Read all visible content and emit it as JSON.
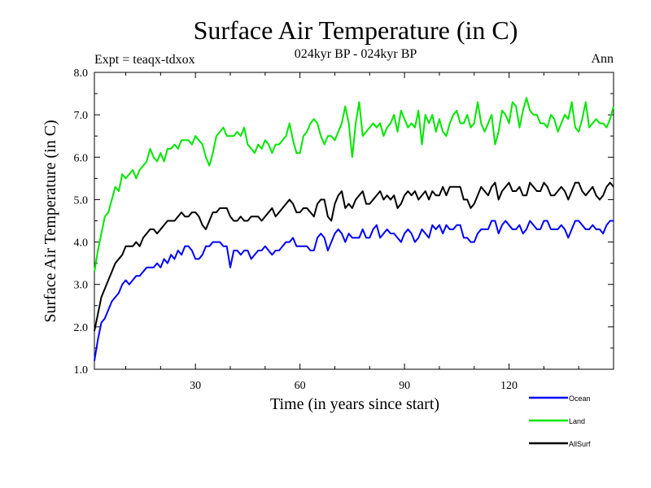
{
  "chart_data": {
    "type": "line",
    "title": "Surface Air Temperature (in C)",
    "subtitle": "024kyr BP - 024kyr BP",
    "left_note": "Expt = teaqx-tdxox",
    "right_note": "Ann",
    "xlabel": "Time (in years since start)",
    "ylabel": "Surface Air Temperature (in C)",
    "xlim": [
      1,
      150
    ],
    "ylim": [
      1.0,
      8.0
    ],
    "xticks": [
      30,
      60,
      90,
      120
    ],
    "yticks": [
      1.0,
      2.0,
      3.0,
      4.0,
      5.0,
      6.0,
      7.0,
      8.0
    ],
    "grid": false,
    "legend_position": "bottom-right",
    "series": [
      {
        "name": "Ocean",
        "color": "#0000ff",
        "x": [
          1,
          2,
          3,
          4,
          5,
          6,
          7,
          8,
          9,
          10,
          11,
          12,
          13,
          14,
          15,
          16,
          17,
          18,
          19,
          20,
          21,
          22,
          23,
          24,
          25,
          26,
          27,
          28,
          29,
          30,
          31,
          32,
          33,
          34,
          35,
          36,
          37,
          38,
          39,
          40,
          41,
          42,
          43,
          44,
          45,
          46,
          47,
          48,
          49,
          50,
          51,
          52,
          53,
          54,
          55,
          56,
          57,
          58,
          59,
          60,
          61,
          62,
          63,
          64,
          65,
          66,
          67,
          68,
          69,
          70,
          71,
          72,
          73,
          74,
          75,
          76,
          77,
          78,
          79,
          80,
          81,
          82,
          83,
          84,
          85,
          86,
          87,
          88,
          89,
          90,
          91,
          92,
          93,
          94,
          95,
          96,
          97,
          98,
          99,
          100,
          101,
          102,
          103,
          104,
          105,
          106,
          107,
          108,
          109,
          110,
          111,
          112,
          113,
          114,
          115,
          116,
          117,
          118,
          119,
          120,
          121,
          122,
          123,
          124,
          125,
          126,
          127,
          128,
          129,
          130,
          131,
          132,
          133,
          134,
          135,
          136,
          137,
          138,
          139,
          140,
          141,
          142,
          143,
          144,
          145,
          146,
          147,
          148,
          149,
          150
        ],
        "values": [
          1.2,
          1.7,
          2.1,
          2.2,
          2.4,
          2.6,
          2.7,
          2.8,
          3.0,
          3.1,
          3.0,
          3.1,
          3.2,
          3.2,
          3.3,
          3.4,
          3.4,
          3.4,
          3.5,
          3.4,
          3.6,
          3.5,
          3.7,
          3.6,
          3.8,
          3.7,
          3.9,
          3.9,
          3.8,
          3.6,
          3.6,
          3.7,
          3.9,
          3.9,
          4.0,
          4.0,
          4.0,
          3.9,
          3.9,
          3.4,
          3.8,
          3.8,
          3.7,
          3.8,
          3.8,
          3.6,
          3.7,
          3.8,
          3.8,
          3.9,
          3.8,
          3.7,
          3.8,
          3.8,
          3.9,
          4.0,
          4.0,
          4.1,
          3.9,
          3.9,
          3.9,
          3.9,
          3.8,
          3.8,
          4.1,
          4.2,
          4.1,
          3.8,
          4.0,
          4.2,
          4.3,
          4.2,
          4.0,
          4.2,
          4.1,
          4.1,
          4.1,
          4.3,
          4.1,
          4.1,
          4.3,
          4.4,
          4.1,
          4.2,
          4.3,
          4.2,
          4.2,
          4.1,
          4.0,
          4.2,
          4.3,
          4.2,
          4.0,
          4.1,
          4.3,
          4.2,
          4.1,
          4.4,
          4.3,
          4.4,
          4.2,
          4.4,
          4.3,
          4.3,
          4.4,
          4.4,
          4.1,
          4.1,
          4.0,
          4.0,
          4.2,
          4.3,
          4.3,
          4.3,
          4.5,
          4.5,
          4.2,
          4.4,
          4.5,
          4.4,
          4.3,
          4.3,
          4.4,
          4.2,
          4.3,
          4.5,
          4.4,
          4.3,
          4.3,
          4.5,
          4.5,
          4.3,
          4.3,
          4.3,
          4.4,
          4.3,
          4.1,
          4.3,
          4.5,
          4.5,
          4.4,
          4.3,
          4.3,
          4.4,
          4.3,
          4.3,
          4.2,
          4.4,
          4.5,
          4.5
        ]
      },
      {
        "name": "Land",
        "color": "#00e600",
        "x": [
          1,
          2,
          3,
          4,
          5,
          6,
          7,
          8,
          9,
          10,
          11,
          12,
          13,
          14,
          15,
          16,
          17,
          18,
          19,
          20,
          21,
          22,
          23,
          24,
          25,
          26,
          27,
          28,
          29,
          30,
          31,
          32,
          33,
          34,
          35,
          36,
          37,
          38,
          39,
          40,
          41,
          42,
          43,
          44,
          45,
          46,
          47,
          48,
          49,
          50,
          51,
          52,
          53,
          54,
          55,
          56,
          57,
          58,
          59,
          60,
          61,
          62,
          63,
          64,
          65,
          66,
          67,
          68,
          69,
          70,
          71,
          72,
          73,
          74,
          75,
          76,
          77,
          78,
          79,
          80,
          81,
          82,
          83,
          84,
          85,
          86,
          87,
          88,
          89,
          90,
          91,
          92,
          93,
          94,
          95,
          96,
          97,
          98,
          99,
          100,
          101,
          102,
          103,
          104,
          105,
          106,
          107,
          108,
          109,
          110,
          111,
          112,
          113,
          114,
          115,
          116,
          117,
          118,
          119,
          120,
          121,
          122,
          123,
          124,
          125,
          126,
          127,
          128,
          129,
          130,
          131,
          132,
          133,
          134,
          135,
          136,
          137,
          138,
          139,
          140,
          141,
          142,
          143,
          144,
          145,
          146,
          147,
          148,
          149,
          150
        ],
        "values": [
          3.3,
          3.8,
          4.2,
          4.6,
          4.7,
          5.0,
          5.3,
          5.2,
          5.6,
          5.5,
          5.6,
          5.7,
          5.5,
          5.7,
          5.8,
          5.9,
          6.2,
          6.0,
          5.9,
          6.1,
          5.9,
          6.2,
          6.2,
          6.3,
          6.2,
          6.4,
          6.4,
          6.4,
          6.3,
          6.5,
          6.4,
          6.3,
          6.0,
          5.8,
          6.1,
          6.5,
          6.6,
          6.7,
          6.5,
          6.5,
          6.5,
          6.6,
          6.5,
          6.7,
          6.3,
          6.2,
          6.1,
          6.3,
          6.2,
          6.4,
          6.3,
          6.1,
          6.3,
          6.3,
          6.4,
          6.5,
          6.8,
          6.4,
          6.1,
          6.1,
          6.5,
          6.6,
          6.8,
          6.9,
          6.8,
          6.5,
          6.3,
          6.5,
          6.5,
          6.4,
          6.6,
          6.8,
          7.2,
          6.8,
          6.0,
          6.8,
          7.3,
          6.5,
          6.6,
          6.7,
          6.8,
          6.7,
          6.8,
          6.5,
          6.7,
          6.8,
          7.0,
          6.6,
          7.1,
          6.9,
          6.7,
          6.8,
          6.7,
          7.1,
          6.3,
          7.0,
          6.8,
          7.0,
          6.6,
          6.9,
          6.6,
          6.5,
          6.8,
          7.0,
          7.1,
          6.8,
          6.8,
          7.0,
          6.7,
          6.8,
          7.3,
          6.8,
          6.6,
          6.8,
          7.0,
          6.3,
          6.6,
          7.1,
          7.0,
          6.8,
          7.3,
          7.2,
          6.7,
          7.1,
          7.4,
          7.1,
          7.0,
          7.0,
          6.8,
          6.8,
          6.7,
          7.0,
          6.9,
          6.6,
          6.8,
          7.0,
          6.9,
          7.3,
          6.7,
          6.6,
          6.9,
          7.3,
          6.7,
          6.8,
          6.9,
          6.8,
          6.8,
          6.7,
          6.9,
          7.2
        ]
      },
      {
        "name": "AllSurf",
        "color": "#000000",
        "x": [
          1,
          2,
          3,
          4,
          5,
          6,
          7,
          8,
          9,
          10,
          11,
          12,
          13,
          14,
          15,
          16,
          17,
          18,
          19,
          20,
          21,
          22,
          23,
          24,
          25,
          26,
          27,
          28,
          29,
          30,
          31,
          32,
          33,
          34,
          35,
          36,
          37,
          38,
          39,
          40,
          41,
          42,
          43,
          44,
          45,
          46,
          47,
          48,
          49,
          50,
          51,
          52,
          53,
          54,
          55,
          56,
          57,
          58,
          59,
          60,
          61,
          62,
          63,
          64,
          65,
          66,
          67,
          68,
          69,
          70,
          71,
          72,
          73,
          74,
          75,
          76,
          77,
          78,
          79,
          80,
          81,
          82,
          83,
          84,
          85,
          86,
          87,
          88,
          89,
          90,
          91,
          92,
          93,
          94,
          95,
          96,
          97,
          98,
          99,
          100,
          101,
          102,
          103,
          104,
          105,
          106,
          107,
          108,
          109,
          110,
          111,
          112,
          113,
          114,
          115,
          116,
          117,
          118,
          119,
          120,
          121,
          122,
          123,
          124,
          125,
          126,
          127,
          128,
          129,
          130,
          131,
          132,
          133,
          134,
          135,
          136,
          137,
          138,
          139,
          140,
          141,
          142,
          143,
          144,
          145,
          146,
          147,
          148,
          149,
          150
        ],
        "values": [
          1.9,
          2.3,
          2.7,
          2.9,
          3.1,
          3.3,
          3.5,
          3.6,
          3.7,
          3.9,
          3.9,
          3.9,
          4.0,
          3.9,
          4.1,
          4.2,
          4.3,
          4.3,
          4.2,
          4.3,
          4.4,
          4.5,
          4.5,
          4.5,
          4.6,
          4.7,
          4.6,
          4.6,
          4.7,
          4.7,
          4.6,
          4.4,
          4.3,
          4.5,
          4.7,
          4.7,
          4.8,
          4.8,
          4.8,
          4.6,
          4.5,
          4.5,
          4.6,
          4.5,
          4.5,
          4.6,
          4.6,
          4.6,
          4.5,
          4.6,
          4.7,
          4.8,
          4.6,
          4.7,
          4.8,
          4.9,
          5.0,
          4.9,
          4.7,
          4.7,
          4.8,
          4.8,
          4.7,
          4.6,
          4.9,
          5.0,
          5.0,
          4.6,
          4.5,
          4.9,
          5.1,
          5.2,
          4.8,
          4.9,
          4.8,
          5.0,
          5.1,
          5.2,
          4.9,
          4.9,
          5.0,
          5.1,
          5.2,
          5.0,
          5.1,
          5.0,
          5.1,
          4.8,
          4.9,
          5.1,
          5.2,
          5.1,
          5.2,
          5.0,
          5.1,
          5.2,
          5.0,
          5.2,
          5.1,
          5.1,
          5.3,
          5.1,
          5.3,
          5.3,
          5.3,
          5.3,
          5.0,
          5.0,
          4.8,
          4.9,
          5.1,
          5.3,
          5.2,
          5.1,
          5.3,
          5.4,
          5.0,
          5.2,
          5.3,
          5.4,
          5.2,
          5.2,
          5.3,
          5.1,
          5.1,
          5.4,
          5.3,
          5.2,
          5.2,
          5.4,
          5.3,
          5.1,
          5.1,
          5.2,
          5.3,
          5.2,
          5.0,
          5.2,
          5.4,
          5.4,
          5.2,
          5.1,
          5.2,
          5.3,
          5.1,
          5.0,
          5.1,
          5.3,
          5.4,
          5.3
        ]
      }
    ]
  }
}
